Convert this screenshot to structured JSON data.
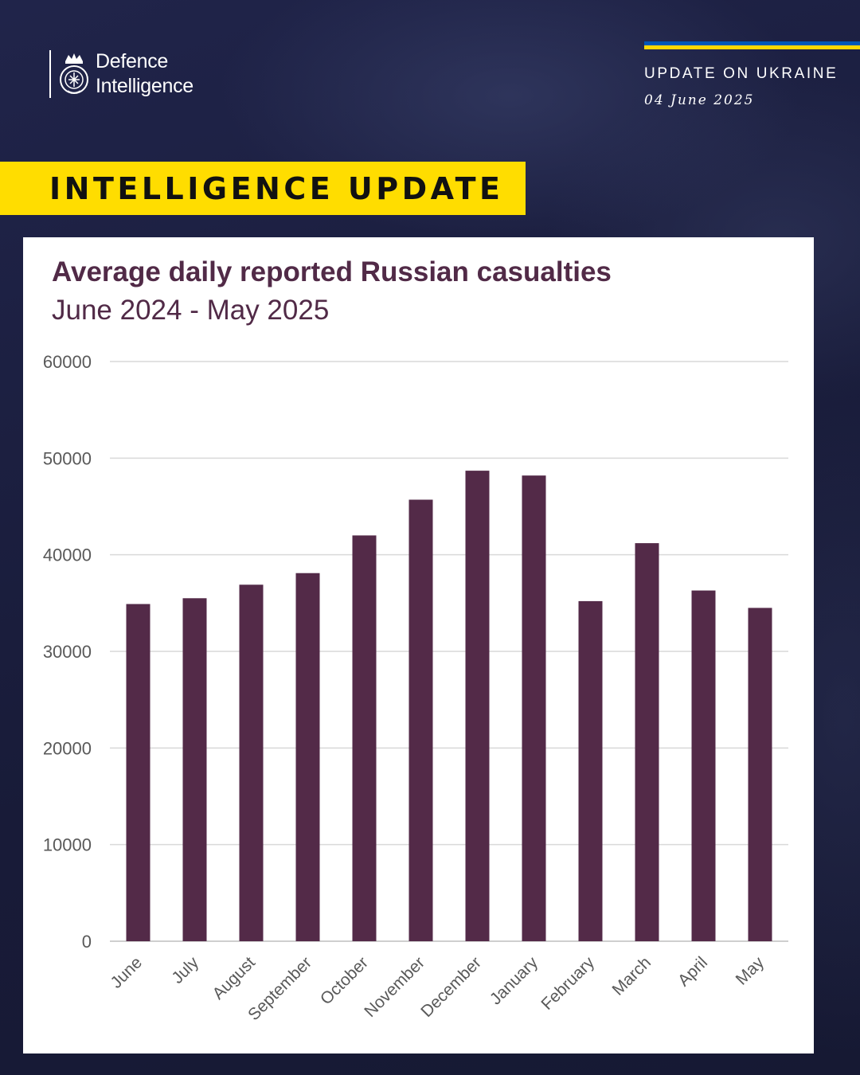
{
  "header": {
    "org_line1": "Defence",
    "org_line2": "Intelligence",
    "update_title": "UPDATE ON UKRAINE",
    "update_date": "04 June 2025",
    "banner": "INTELLIGENCE UPDATE"
  },
  "colors": {
    "background": "#1b1f3e",
    "banner": "#ffdd00",
    "bar": "#532a48",
    "title": "#512a47",
    "flag_blue": "#0057b7",
    "flag_yellow": "#ffd700"
  },
  "icons": [
    "defence-intelligence-crest-icon"
  ],
  "chart_data": {
    "type": "bar",
    "title": "Average daily reported Russian casualties",
    "subtitle": "June 2024 - May 2025",
    "xlabel": "",
    "ylabel": "",
    "categories": [
      "June",
      "July",
      "August",
      "September",
      "October",
      "November",
      "December",
      "January",
      "February",
      "March",
      "April",
      "May"
    ],
    "values": [
      34900,
      35500,
      36900,
      38100,
      42000,
      45700,
      48700,
      48200,
      35200,
      41200,
      36300,
      34500
    ],
    "ylim": [
      0,
      60000
    ],
    "yticks": [
      0,
      10000,
      20000,
      30000,
      40000,
      50000,
      60000
    ],
    "grid": true,
    "legend": "none"
  }
}
